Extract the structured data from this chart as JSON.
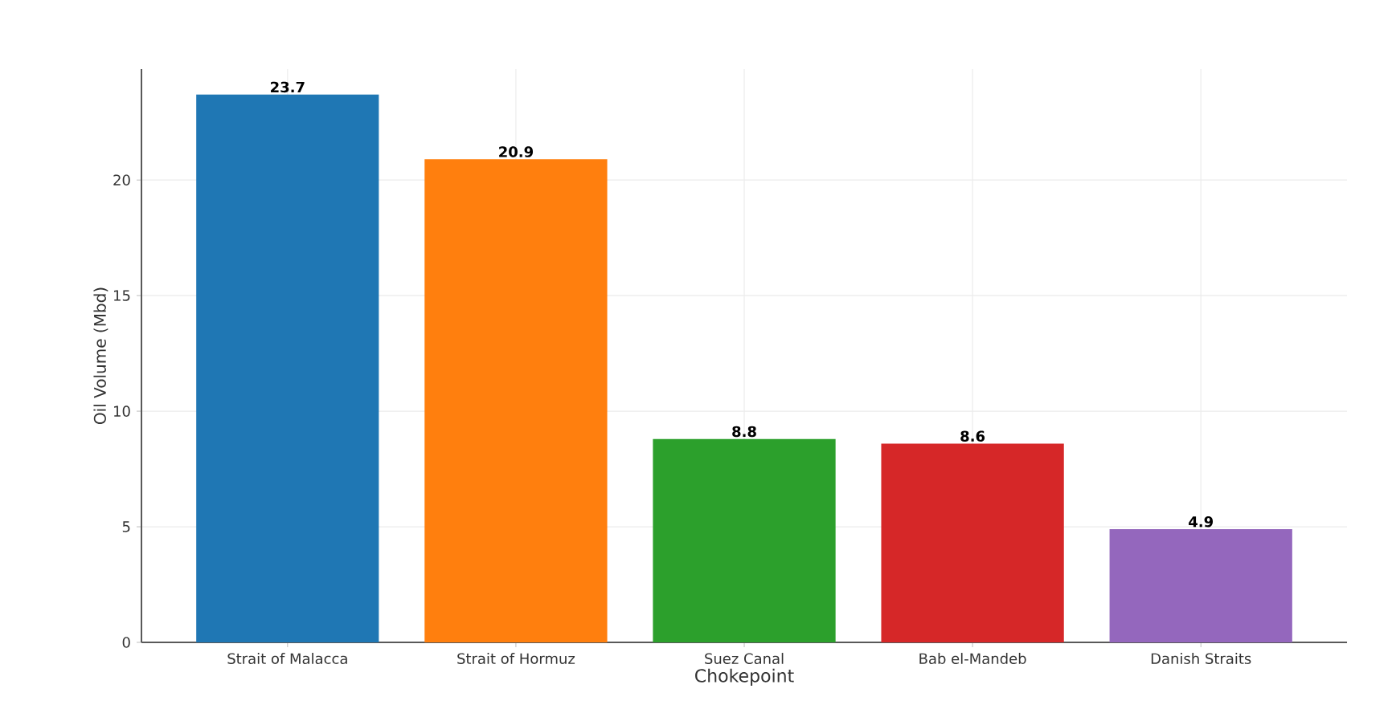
{
  "chart_data": {
    "type": "bar",
    "xlabel": "Chokepoint",
    "ylabel": "Oil Volume (Mbd)",
    "categories": [
      "Strait of Malacca",
      "Strait of Hormuz",
      "Suez Canal",
      "Bab el-Mandeb",
      "Danish Straits"
    ],
    "values": [
      23.7,
      20.9,
      8.8,
      8.6,
      4.9
    ],
    "colors": [
      "#1f77b4",
      "#ff7f0e",
      "#2ca02c",
      "#d62728",
      "#9467bd"
    ],
    "ylim": [
      0,
      24.8
    ],
    "yticks": [
      0,
      5,
      10,
      15,
      20
    ],
    "grid": true,
    "data_labels": true
  }
}
